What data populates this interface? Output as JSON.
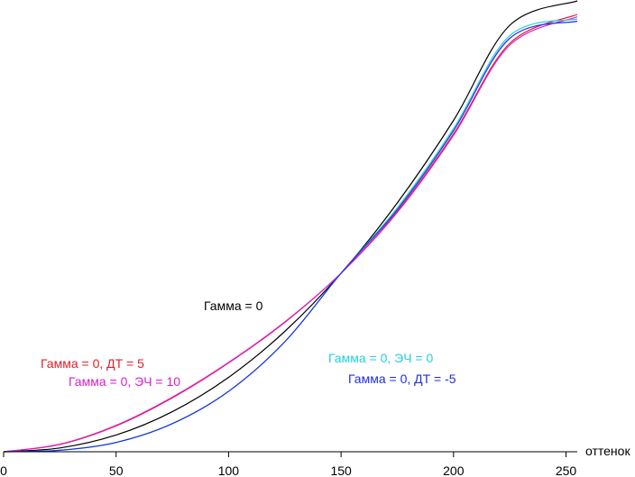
{
  "chart_data": {
    "type": "line",
    "xlabel": "оттенок",
    "ylabel": "",
    "title": "",
    "xlim": [
      0,
      255
    ],
    "ylim": [
      0,
      1
    ],
    "x_ticks": [
      0,
      50,
      100,
      150,
      200,
      250
    ],
    "grid": false,
    "legend": "none",
    "series": [
      {
        "name": "Гамма = 0",
        "color": "#000000",
        "x": [
          0,
          25,
          50,
          75,
          100,
          125,
          150,
          175,
          200,
          225,
          255
        ],
        "values": [
          0.0,
          0.0084,
          0.0371,
          0.0889,
          0.165,
          0.267,
          0.396,
          0.552,
          0.735,
          0.946,
          1.0
        ]
      },
      {
        "name": "Гамма = 0, ДТ = 5",
        "color": "#e0202a",
        "x": [
          0,
          25,
          50,
          75,
          100,
          125,
          150,
          175,
          200,
          225,
          255
        ],
        "values": [
          0.0,
          0.0161,
          0.0574,
          0.1196,
          0.197,
          0.287,
          0.396,
          0.533,
          0.705,
          0.906,
          0.97
        ]
      },
      {
        "name": "Гамма = 0, ЭЧ = 10",
        "color": "#d81ed0",
        "x": [
          0,
          25,
          50,
          75,
          100,
          125,
          150,
          175,
          200,
          225,
          255
        ],
        "values": [
          0.0,
          0.0168,
          0.0586,
          0.121,
          0.198,
          0.288,
          0.396,
          0.531,
          0.702,
          0.902,
          0.965
        ]
      },
      {
        "name": "Гамма = 0, ЭЧ = 0",
        "color": "#25d0dc",
        "x": [
          0,
          25,
          50,
          75,
          100,
          125,
          150,
          175,
          200,
          225,
          255
        ],
        "values": [
          0.0,
          0.0032,
          0.0206,
          0.0623,
          0.134,
          0.244,
          0.396,
          0.541,
          0.717,
          0.923,
          0.96
        ]
      },
      {
        "name": "Гамма = 0, ДТ = -5",
        "color": "#1f2fe0",
        "x": [
          0,
          25,
          50,
          75,
          100,
          125,
          150,
          175,
          200,
          225,
          255
        ],
        "values": [
          0.0,
          0.0032,
          0.0206,
          0.0623,
          0.134,
          0.244,
          0.396,
          0.537,
          0.712,
          0.917,
          0.955
        ]
      }
    ],
    "annotations": [
      {
        "text": "Гамма = 0",
        "color": "#000000"
      },
      {
        "text": "Гамма = 0, ДТ = 5",
        "color": "#e0202a"
      },
      {
        "text": "Гамма = 0, ЭЧ = 10",
        "color": "#d81ed0"
      },
      {
        "text": "Гамма = 0, ЭЧ = 0",
        "color": "#25d0dc"
      },
      {
        "text": "Гамма = 0, ДТ = -5",
        "color": "#1f2fe0"
      }
    ]
  }
}
